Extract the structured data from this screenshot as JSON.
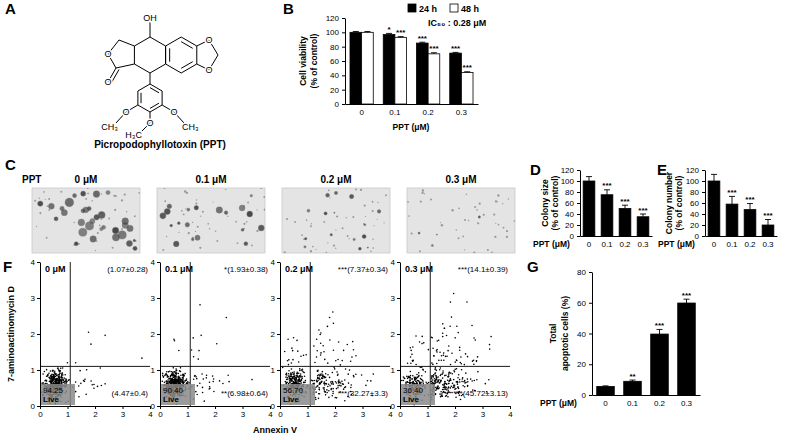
{
  "chart_data": [
    {
      "type": "structure",
      "panel_label": "A",
      "title": "Picropodophyllotoxin (PPT)",
      "atom_labels": [
        "OH",
        "O",
        "O",
        "O",
        "O",
        "O",
        "CH₃",
        "O",
        "H₃C",
        "O",
        "CH₃"
      ]
    },
    {
      "type": "bar",
      "panel_label": "B",
      "categories": [
        "0",
        "0.1",
        "0.2",
        "0.3"
      ],
      "x_label": "PPT (μM)",
      "y_label": [
        "Cell viability",
        "(% of control)"
      ],
      "annotation": "IC₅₀ : 0.28 μM",
      "legend": "top",
      "ylim": [
        0,
        120
      ],
      "yticks": [
        0,
        20,
        40,
        60,
        80,
        100,
        120
      ],
      "series": [
        {
          "name": "24 h",
          "color": "#000000",
          "values": [
            100,
            97,
            85,
            71
          ],
          "errors": [
            1.2,
            1.5,
            1.2,
            1.0
          ],
          "significance": [
            null,
            "*",
            "***",
            "***"
          ]
        },
        {
          "name": "48 h",
          "color": "#ffffff",
          "values": [
            100,
            93,
            70,
            44
          ],
          "errors": [
            1.2,
            1.0,
            1.5,
            1.0
          ],
          "significance": [
            null,
            "***",
            "***",
            "***"
          ]
        }
      ]
    },
    {
      "type": "image",
      "panel_label": "C",
      "row_label": "PPT",
      "titles": [
        "0 μM",
        "0.1 μM",
        "0.2 μM",
        "0.3 μM"
      ]
    },
    {
      "type": "bar",
      "panel_label": "D",
      "categories": [
        "0",
        "0.1",
        "0.2",
        "0.3"
      ],
      "x_label": "PPT (μM)",
      "y_label": [
        "Colony size",
        "(% of control)"
      ],
      "ylim": [
        0,
        120
      ],
      "yticks": [
        0,
        20,
        40,
        60,
        80,
        100,
        120
      ],
      "color": "#000000",
      "values": [
        100,
        75,
        50,
        35
      ],
      "errors": [
        8,
        9,
        6,
        5
      ],
      "significance": [
        null,
        "***",
        "***",
        "***"
      ]
    },
    {
      "type": "bar",
      "panel_label": "E",
      "categories": [
        "0",
        "0.1",
        "0.2",
        "0.3"
      ],
      "x_label": "PPT (μM)",
      "y_label": [
        "Colony number",
        "(% of control)"
      ],
      "ylim": [
        0,
        120
      ],
      "yticks": [
        0,
        20,
        40,
        60,
        80,
        100,
        120
      ],
      "color": "#000000",
      "values": [
        100,
        58,
        48,
        20
      ],
      "errors": [
        12,
        14,
        11,
        10
      ],
      "significance": [
        null,
        "***",
        "***",
        "***"
      ]
    },
    {
      "type": "scatter",
      "panel_label": "F",
      "x_label": "Annexin V",
      "y_label": "7-aminoactinomycin D",
      "xlim": [
        0,
        4
      ],
      "ylim": [
        0,
        4
      ],
      "xticks": [
        0,
        1,
        2,
        3,
        4
      ],
      "yticks": [
        0,
        1,
        2,
        3,
        4
      ],
      "gates": {
        "x": 1.1,
        "y": 1.1
      },
      "live_name": "Live",
      "panels": [
        {
          "title": "0 μM",
          "ur": {
            "value": 1.07,
            "label": "(1.07±0.28)"
          },
          "lr": {
            "value": 4.47,
            "label": "(4.47±0.4)"
          },
          "ll": {
            "value": 94.25,
            "label": "94.25"
          }
        },
        {
          "title": "0.1 μM",
          "ur": {
            "value": 1.93,
            "label": "*(1.93±0.38)"
          },
          "lr": {
            "value": 6.98,
            "label": "**(6.98±0.64)"
          },
          "ll": {
            "value": 90.4,
            "label": "90.40"
          }
        },
        {
          "title": "0.2 μM",
          "ur": {
            "value": 7.37,
            "label": "***(7.37±0.34)"
          },
          "lr": {
            "value": 32.27,
            "label": "***(32.27±3.3)"
          },
          "ll": {
            "value": 56.7,
            "label": "56.70"
          }
        },
        {
          "title": "0.3 μM",
          "ur": {
            "value": 14.1,
            "label": "***(14.1±0.39)"
          },
          "lr": {
            "value": 45.72,
            "label": "***(45.72±3.13)"
          },
          "ll": {
            "value": 36.4,
            "label": "36.40"
          }
        }
      ]
    },
    {
      "type": "bar",
      "panel_label": "G",
      "categories": [
        "0",
        "0.1",
        "0.2",
        "0.3"
      ],
      "x_label": "PPT (μM)",
      "y_label": [
        "Total",
        "apoptotic cells (%)"
      ],
      "ylim": [
        0,
        80
      ],
      "yticks": [
        0,
        20,
        40,
        60,
        80
      ],
      "color": "#000000",
      "values": [
        5.54,
        8.91,
        39.64,
        59.82
      ],
      "errors": [
        0.4,
        0.8,
        3,
        2.5
      ],
      "significance": [
        null,
        "**",
        "***",
        "***"
      ]
    }
  ]
}
